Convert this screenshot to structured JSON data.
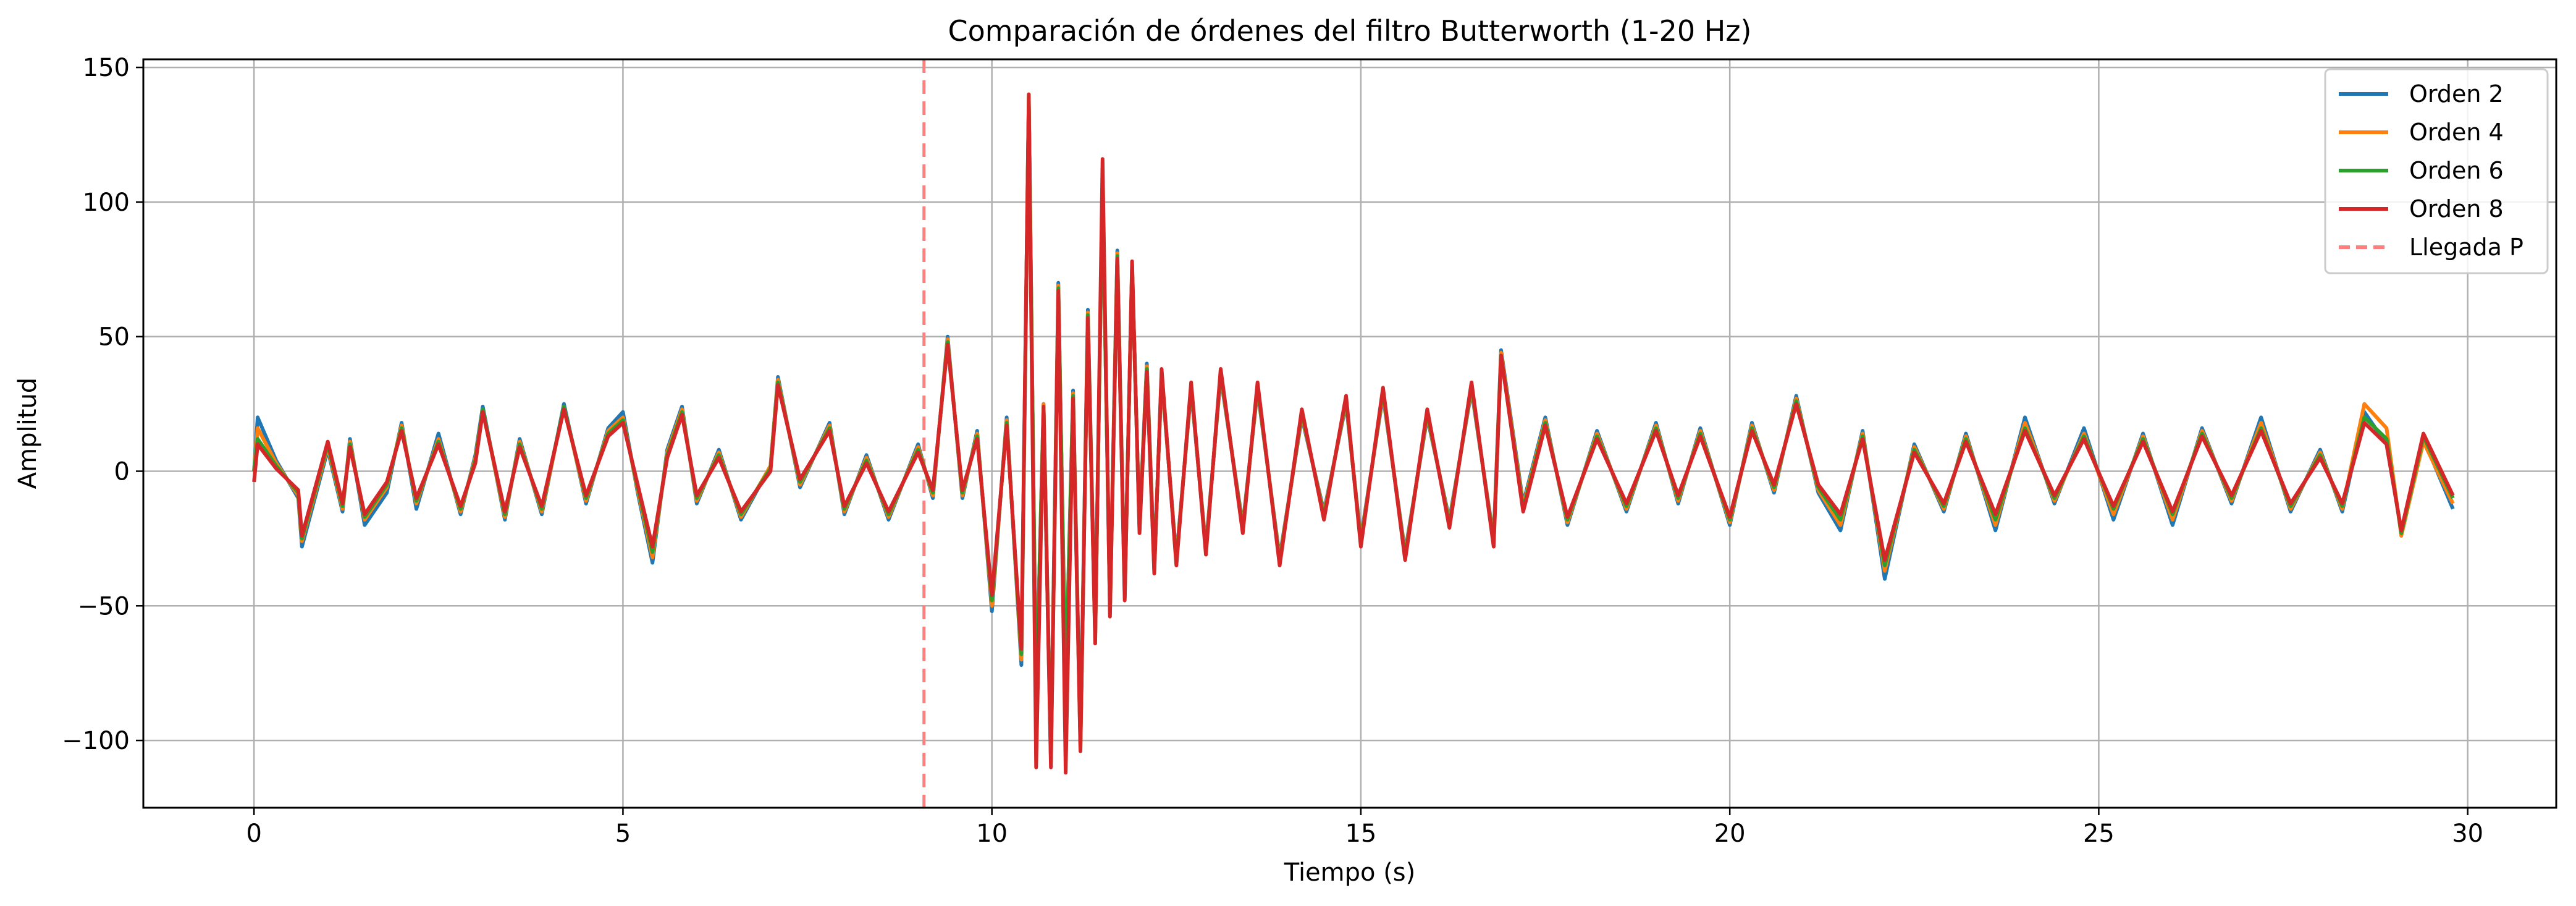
{
  "chart_data": {
    "type": "line",
    "title": "Comparación de órdenes del filtro Butterworth (1-20 Hz)",
    "xlabel": "Tiempo (s)",
    "ylabel": "Amplitud",
    "xlim": [
      -1.5,
      31.2
    ],
    "ylim": [
      -125,
      153
    ],
    "xticks": [
      0,
      5,
      10,
      15,
      20,
      25,
      30
    ],
    "xtick_labels": [
      "0",
      "5",
      "10",
      "15",
      "20",
      "25",
      "30"
    ],
    "yticks": [
      -100,
      -50,
      0,
      50,
      100,
      150
    ],
    "ytick_labels": [
      "−100",
      "−50",
      "0",
      "50",
      "100",
      "150"
    ],
    "grid": true,
    "legend_position": "top-right",
    "colors": {
      "orden2": "#1f77b4",
      "orden4": "#ff7f0e",
      "orden6": "#2ca02c",
      "orden8": "#d62728",
      "llegada": "#ff7f7f"
    },
    "p_arrival": {
      "name": "Llegada P",
      "x": 9.08
    },
    "series": [
      {
        "name": "Orden 2",
        "x": [
          0.0,
          0.05,
          0.3,
          0.6,
          0.65,
          1.0,
          1.2,
          1.3,
          1.5,
          1.8,
          2.0,
          2.2,
          2.5,
          2.8,
          3.0,
          3.1,
          3.4,
          3.6,
          3.9,
          4.2,
          4.5,
          4.8,
          5.0,
          5.2,
          5.4,
          5.6,
          5.8,
          6.0,
          6.3,
          6.6,
          7.0,
          7.1,
          7.4,
          7.8,
          8.0,
          8.3,
          8.6,
          9.0,
          9.2,
          9.4,
          9.6,
          9.8,
          10.0,
          10.2,
          10.4,
          10.5,
          10.6,
          10.7,
          10.8,
          10.9,
          11.0,
          11.1,
          11.2,
          11.3,
          11.4,
          11.5,
          11.6,
          11.7,
          11.8,
          11.9,
          12.0,
          12.1,
          12.2,
          12.3,
          12.5,
          12.7,
          12.9,
          13.1,
          13.4,
          13.6,
          13.9,
          14.2,
          14.5,
          14.8,
          15.0,
          15.3,
          15.6,
          15.9,
          16.2,
          16.5,
          16.8,
          16.9,
          17.2,
          17.5,
          17.8,
          18.2,
          18.6,
          19.0,
          19.3,
          19.6,
          20.0,
          20.3,
          20.6,
          20.9,
          21.2,
          21.5,
          21.8,
          22.1,
          22.5,
          22.9,
          23.2,
          23.6,
          24.0,
          24.4,
          24.8,
          25.2,
          25.6,
          26.0,
          26.4,
          26.8,
          27.2,
          27.6,
          28.0,
          28.3,
          28.6,
          28.9,
          29.1,
          29.4,
          29.8
        ],
        "y": [
          0,
          20,
          4,
          -10,
          -28,
          8,
          -15,
          12,
          -20,
          -8,
          18,
          -14,
          14,
          -16,
          6,
          24,
          -18,
          12,
          -16,
          25,
          -12,
          16,
          22,
          -8,
          -34,
          8,
          24,
          -12,
          8,
          -18,
          2,
          35,
          -6,
          18,
          -16,
          6,
          -18,
          10,
          -10,
          50,
          -10,
          15,
          -52,
          20,
          -72,
          138,
          -85,
          25,
          -105,
          70,
          -80,
          30,
          -100,
          60,
          -60,
          105,
          -50,
          82,
          -45,
          75,
          -20,
          40,
          -35,
          35,
          -32,
          30,
          -28,
          35,
          -20,
          30,
          -32,
          20,
          -15,
          25,
          -25,
          28,
          -30,
          20,
          -18,
          30,
          -25,
          45,
          -12,
          20,
          -20,
          15,
          -15,
          18,
          -12,
          16,
          -20,
          18,
          -8,
          28,
          -8,
          -22,
          15,
          -40,
          10,
          -15,
          14,
          -22,
          20,
          -12,
          16,
          -18,
          14,
          -20,
          16,
          -12,
          20,
          -15,
          8,
          -15,
          22,
          10,
          -22,
          12,
          -14
        ]
      },
      {
        "name": "Orden 4",
        "x": [
          0.0,
          0.05,
          0.3,
          0.6,
          0.65,
          1.0,
          1.2,
          1.3,
          1.5,
          1.8,
          2.0,
          2.2,
          2.5,
          2.8,
          3.0,
          3.1,
          3.4,
          3.6,
          3.9,
          4.2,
          4.5,
          4.8,
          5.0,
          5.2,
          5.4,
          5.6,
          5.8,
          6.0,
          6.3,
          6.6,
          7.0,
          7.1,
          7.4,
          7.8,
          8.0,
          8.3,
          8.6,
          9.0,
          9.2,
          9.4,
          9.6,
          9.8,
          10.0,
          10.2,
          10.4,
          10.5,
          10.6,
          10.7,
          10.8,
          10.9,
          11.0,
          11.1,
          11.2,
          11.3,
          11.4,
          11.5,
          11.6,
          11.7,
          11.8,
          11.9,
          12.0,
          12.1,
          12.2,
          12.3,
          12.5,
          12.7,
          12.9,
          13.1,
          13.4,
          13.6,
          13.9,
          14.2,
          14.5,
          14.8,
          15.0,
          15.3,
          15.6,
          15.9,
          16.2,
          16.5,
          16.8,
          16.9,
          17.2,
          17.5,
          17.8,
          18.2,
          18.6,
          19.0,
          19.3,
          19.6,
          20.0,
          20.3,
          20.6,
          20.9,
          21.2,
          21.5,
          21.8,
          22.1,
          22.5,
          22.9,
          23.2,
          23.6,
          24.0,
          24.4,
          24.8,
          25.2,
          25.6,
          26.0,
          26.4,
          26.8,
          27.2,
          27.6,
          28.0,
          28.3,
          28.6,
          28.9,
          29.1,
          29.4,
          29.8
        ],
        "y": [
          0,
          16,
          3,
          -9,
          -26,
          9,
          -14,
          11,
          -18,
          -6,
          17,
          -12,
          12,
          -15,
          5,
          23,
          -17,
          11,
          -15,
          24,
          -11,
          15,
          20,
          -7,
          -32,
          7,
          23,
          -11,
          7,
          -17,
          2,
          34,
          -5,
          17,
          -15,
          5,
          -17,
          9,
          -9,
          49,
          -9,
          14,
          -50,
          19,
          -70,
          139,
          -87,
          25,
          -107,
          69,
          -82,
          29,
          -102,
          59,
          -62,
          106,
          -52,
          81,
          -46,
          76,
          -21,
          39,
          -36,
          36,
          -33,
          31,
          -29,
          36,
          -21,
          31,
          -33,
          21,
          -16,
          26,
          -26,
          29,
          -31,
          21,
          -19,
          31,
          -26,
          44,
          -13,
          19,
          -19,
          14,
          -14,
          17,
          -11,
          15,
          -19,
          17,
          -7,
          27,
          -7,
          -20,
          14,
          -37,
          9,
          -14,
          13,
          -20,
          18,
          -11,
          14,
          -16,
          13,
          -18,
          15,
          -11,
          18,
          -14,
          7,
          -14,
          25,
          16,
          -24,
          11,
          -12
        ]
      },
      {
        "name": "Orden 6",
        "x": [
          0.0,
          0.05,
          0.3,
          0.6,
          0.65,
          1.0,
          1.2,
          1.3,
          1.5,
          1.8,
          2.0,
          2.2,
          2.5,
          2.8,
          3.0,
          3.1,
          3.4,
          3.6,
          3.9,
          4.2,
          4.5,
          4.8,
          5.0,
          5.2,
          5.4,
          5.6,
          5.8,
          6.0,
          6.3,
          6.6,
          7.0,
          7.1,
          7.4,
          7.8,
          8.0,
          8.3,
          8.6,
          9.0,
          9.2,
          9.4,
          9.6,
          9.8,
          10.0,
          10.2,
          10.4,
          10.5,
          10.6,
          10.7,
          10.8,
          10.9,
          11.0,
          11.1,
          11.2,
          11.3,
          11.4,
          11.5,
          11.6,
          11.7,
          11.8,
          11.9,
          12.0,
          12.1,
          12.2,
          12.3,
          12.5,
          12.7,
          12.9,
          13.1,
          13.4,
          13.6,
          13.9,
          14.2,
          14.5,
          14.8,
          15.0,
          15.3,
          15.6,
          15.9,
          16.2,
          16.5,
          16.8,
          16.9,
          17.2,
          17.5,
          17.8,
          18.2,
          18.6,
          19.0,
          19.3,
          19.6,
          20.0,
          20.3,
          20.6,
          20.9,
          21.2,
          21.5,
          21.8,
          22.1,
          22.5,
          22.9,
          23.2,
          23.6,
          24.0,
          24.4,
          24.8,
          25.2,
          25.6,
          26.0,
          26.4,
          26.8,
          27.2,
          27.6,
          28.0,
          28.3,
          28.6,
          28.9,
          29.1,
          29.4,
          29.8
        ],
        "y": [
          0,
          12,
          2,
          -8,
          -25,
          10,
          -13,
          10,
          -17,
          -5,
          16,
          -11,
          11,
          -14,
          4,
          23,
          -16,
          10,
          -14,
          24,
          -10,
          14,
          19,
          -6,
          -30,
          6,
          22,
          -10,
          6,
          -16,
          1,
          33,
          -4,
          16,
          -14,
          4,
          -16,
          8,
          -8,
          48,
          -8,
          13,
          -48,
          18,
          -68,
          140,
          -88,
          24,
          -108,
          68,
          -83,
          28,
          -103,
          58,
          -63,
          107,
          -53,
          80,
          -47,
          77,
          -22,
          38,
          -37,
          37,
          -34,
          32,
          -30,
          37,
          -22,
          32,
          -34,
          22,
          -17,
          27,
          -27,
          30,
          -32,
          22,
          -20,
          32,
          -27,
          43,
          -14,
          18,
          -18,
          13,
          -13,
          16,
          -10,
          14,
          -18,
          16,
          -6,
          26,
          -6,
          -18,
          13,
          -35,
          8,
          -13,
          12,
          -18,
          16,
          -10,
          13,
          -14,
          12,
          -16,
          14,
          -10,
          16,
          -13,
          6,
          -13,
          20,
          12,
          -23,
          13,
          -10
        ]
      },
      {
        "name": "Orden 8",
        "x": [
          0.0,
          0.05,
          0.3,
          0.6,
          0.65,
          1.0,
          1.2,
          1.3,
          1.5,
          1.8,
          2.0,
          2.2,
          2.5,
          2.8,
          3.0,
          3.1,
          3.4,
          3.6,
          3.9,
          4.2,
          4.5,
          4.8,
          5.0,
          5.2,
          5.4,
          5.6,
          5.8,
          6.0,
          6.3,
          6.6,
          7.0,
          7.1,
          7.4,
          7.8,
          8.0,
          8.3,
          8.6,
          9.0,
          9.2,
          9.4,
          9.6,
          9.8,
          10.0,
          10.2,
          10.4,
          10.5,
          10.6,
          10.7,
          10.8,
          10.9,
          11.0,
          11.1,
          11.2,
          11.3,
          11.4,
          11.5,
          11.6,
          11.7,
          11.8,
          11.9,
          12.0,
          12.1,
          12.2,
          12.3,
          12.5,
          12.7,
          12.9,
          13.1,
          13.4,
          13.6,
          13.9,
          14.2,
          14.5,
          14.8,
          15.0,
          15.3,
          15.6,
          15.9,
          16.2,
          16.5,
          16.8,
          16.9,
          17.2,
          17.5,
          17.8,
          18.2,
          18.6,
          19.0,
          19.3,
          19.6,
          20.0,
          20.3,
          20.6,
          20.9,
          21.2,
          21.5,
          21.8,
          22.1,
          22.5,
          22.9,
          23.2,
          23.6,
          24.0,
          24.4,
          24.8,
          25.2,
          25.6,
          26.0,
          26.4,
          26.8,
          27.2,
          27.6,
          28.0,
          28.3,
          28.6,
          28.9,
          29.1,
          29.4,
          29.8
        ],
        "y": [
          -4,
          10,
          1,
          -7,
          -24,
          11,
          -12,
          9,
          -16,
          -4,
          15,
          -10,
          10,
          -13,
          3,
          22,
          -15,
          9,
          -13,
          23,
          -9,
          13,
          18,
          -5,
          -28,
          5,
          21,
          -9,
          5,
          -15,
          0,
          32,
          -3,
          15,
          -13,
          3,
          -15,
          7,
          -7,
          47,
          -7,
          12,
          -46,
          17,
          -66,
          140,
          -110,
          24,
          -110,
          67,
          -112,
          27,
          -104,
          57,
          -64,
          116,
          -54,
          79,
          -48,
          78,
          -23,
          37,
          -38,
          38,
          -35,
          33,
          -31,
          38,
          -23,
          33,
          -35,
          23,
          -18,
          28,
          -28,
          31,
          -33,
          23,
          -21,
          33,
          -28,
          43,
          -15,
          17,
          -17,
          12,
          -12,
          15,
          -9,
          13,
          -17,
          15,
          -5,
          25,
          -5,
          -16,
          12,
          -33,
          7,
          -12,
          11,
          -16,
          15,
          -9,
          12,
          -13,
          11,
          -15,
          13,
          -9,
          15,
          -12,
          5,
          -12,
          18,
          10,
          -22,
          14,
          -9
        ]
      }
    ]
  }
}
